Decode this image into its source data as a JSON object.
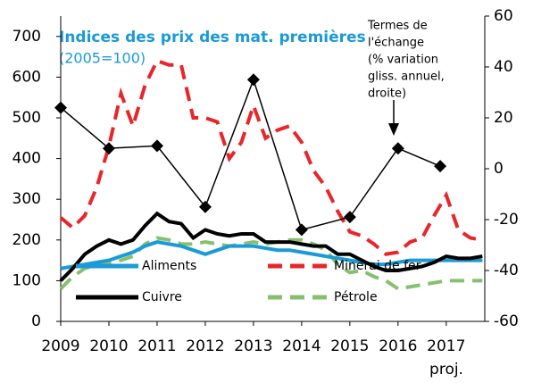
{
  "chart_data": {
    "type": "line",
    "title": "Indices des prix des mat. premières",
    "subtitle": "(2005=100)",
    "annotation": [
      "Termes de",
      "l'échange",
      "(% variation",
      "gliss. annuel,",
      "droite)"
    ],
    "x_note": "proj.",
    "x": [
      2009,
      2009.25,
      2009.5,
      2009.75,
      2010,
      2010.25,
      2010.5,
      2010.75,
      2011,
      2011.25,
      2011.5,
      2011.75,
      2012,
      2012.25,
      2012.5,
      2012.75,
      2013,
      2013.25,
      2013.5,
      2013.75,
      2014,
      2014.25,
      2014.5,
      2014.75,
      2015,
      2015.25,
      2015.5,
      2015.75,
      2016,
      2016.25,
      2016.5,
      2016.75,
      2017,
      2017.25,
      2017.5,
      2017.75
    ],
    "xlim": [
      2009,
      2017.8
    ],
    "xticks": [
      2009,
      2010,
      2011,
      2012,
      2013,
      2014,
      2015,
      2016,
      2017
    ],
    "ylim": [
      0,
      750
    ],
    "yticks": [
      0,
      100,
      200,
      300,
      400,
      500,
      600,
      700
    ],
    "y2lim": [
      -60,
      60
    ],
    "y2ticks": [
      -60,
      -40,
      -20,
      0,
      20,
      40,
      60
    ],
    "series": [
      {
        "name": "Minerai de fer",
        "color": "#e8262a",
        "dash": true,
        "values": [
          255,
          230,
          260,
          330,
          430,
          560,
          480,
          580,
          640,
          630,
          630,
          500,
          500,
          490,
          400,
          440,
          530,
          450,
          470,
          480,
          440,
          370,
          330,
          270,
          220,
          210,
          190,
          165,
          170,
          195,
          205,
          260,
          310,
          225,
          205,
          200
        ]
      },
      {
        "name": "Pétrole",
        "color": "#86c06f",
        "dash": true,
        "values": [
          80,
          110,
          130,
          140,
          145,
          150,
          160,
          190,
          205,
          200,
          190,
          190,
          195,
          190,
          185,
          190,
          195,
          190,
          195,
          200,
          200,
          190,
          175,
          140,
          120,
          125,
          110,
          100,
          80,
          85,
          90,
          95,
          100,
          100,
          100,
          100
        ]
      },
      {
        "name": "Aliments",
        "color": "#1a9ad6",
        "dash": false,
        "values": [
          130,
          135,
          140,
          145,
          150,
          160,
          170,
          185,
          195,
          190,
          185,
          175,
          165,
          175,
          185,
          185,
          185,
          180,
          175,
          175,
          170,
          165,
          160,
          155,
          150,
          145,
          140,
          140,
          145,
          150,
          150,
          150,
          150,
          150,
          150,
          150
        ]
      },
      {
        "name": "Cuivre",
        "color": "#000000",
        "dash": false,
        "values": [
          100,
          130,
          165,
          185,
          200,
          190,
          200,
          235,
          265,
          245,
          240,
          205,
          225,
          215,
          210,
          215,
          215,
          195,
          195,
          195,
          190,
          185,
          185,
          165,
          165,
          150,
          135,
          125,
          125,
          130,
          135,
          145,
          160,
          155,
          155,
          160
        ]
      },
      {
        "axis": "y2",
        "color": "#000000",
        "marker": "diamond",
        "x": [
          2009,
          2010,
          2011,
          2012,
          2013,
          2014,
          2015,
          2016,
          2016.875
        ],
        "values": [
          24,
          8,
          9,
          -15,
          35,
          -24,
          -19,
          8,
          1
        ]
      }
    ]
  }
}
